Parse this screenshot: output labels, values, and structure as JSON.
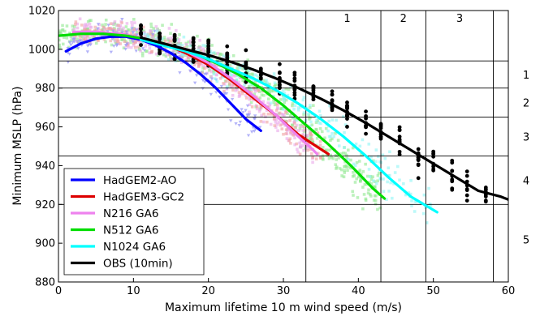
{
  "chart_data": {
    "type": "scatter",
    "xlabel": "Maximum lifetime 10 m wind speed (m/s)",
    "ylabel": "Minimum MSLP (hPa)",
    "xlim": [
      0,
      60
    ],
    "ylim": [
      880,
      1020
    ],
    "xticks": [
      "0",
      "10",
      "20",
      "30",
      "40",
      "50",
      "60"
    ],
    "yticks": [
      "880",
      "900",
      "920",
      "940",
      "960",
      "980",
      "1000",
      "1020"
    ],
    "legend_position": "lower-left",
    "category_lines": {
      "wind": [
        33,
        43,
        49,
        58
      ],
      "pressure": [
        994,
        980,
        965,
        945,
        920
      ],
      "top_labels": [
        {
          "text": "1",
          "x": 38.5
        },
        {
          "text": "2",
          "x": 46.0
        },
        {
          "text": "3",
          "x": 53.5
        }
      ],
      "right_labels": [
        {
          "text": "1",
          "y": 987
        },
        {
          "text": "2",
          "y": 972.5
        },
        {
          "text": "3",
          "y": 955
        },
        {
          "text": "4",
          "y": 932.5
        },
        {
          "text": "5",
          "y": 902
        }
      ]
    },
    "series": [
      {
        "name": "HadGEM2-AO",
        "color": "#0000ff",
        "x": [
          1,
          3,
          5,
          7,
          9,
          11,
          13,
          15,
          17,
          19,
          21,
          23,
          25,
          27
        ],
        "y": [
          999,
          1003,
          1005.5,
          1006.5,
          1006.5,
          1005,
          1002,
          998,
          993,
          987,
          980,
          972,
          964,
          958
        ]
      },
      {
        "name": "HadGEM3-GC2",
        "color": "#dd0000",
        "x": [
          2,
          5,
          8,
          11,
          14,
          17,
          20,
          23,
          26,
          29,
          32,
          34,
          36
        ],
        "y": [
          1008,
          1008.5,
          1008,
          1006,
          1003,
          998,
          992,
          984,
          975,
          966,
          956,
          951,
          946
        ]
      },
      {
        "name": "N216 GA6",
        "color": "#ee82ee",
        "x": [
          2,
          5,
          8,
          11,
          14,
          17,
          20,
          23,
          26,
          29,
          32,
          34,
          34.5
        ],
        "y": [
          1009,
          1009,
          1008,
          1006,
          1003,
          999,
          993,
          985,
          976,
          966,
          955,
          948,
          946
        ]
      },
      {
        "name": "N512 GA6",
        "color": "#00dd00",
        "x": [
          0,
          3,
          6,
          9,
          12,
          15,
          18,
          21,
          24,
          27,
          30,
          33,
          36,
          39,
          42,
          43.5
        ],
        "y": [
          1007,
          1008,
          1008,
          1007,
          1005,
          1002,
          998,
          993,
          987,
          980,
          971,
          961,
          951,
          940,
          928,
          923
        ]
      },
      {
        "name": "N1024 GA6",
        "color": "#00ffff",
        "x": [
          11,
          14,
          17,
          20,
          23,
          26,
          29,
          32,
          35,
          38,
          41,
          44,
          47,
          50.5
        ],
        "y": [
          1005,
          1002,
          999,
          995,
          990,
          985,
          979,
          972,
          964,
          955,
          945,
          934,
          924,
          916
        ]
      },
      {
        "name": "OBS (10min)",
        "color": "#000000",
        "x": [
          11,
          14,
          17,
          20,
          23,
          26,
          29,
          32,
          35,
          38,
          41,
          44,
          47,
          50,
          53,
          56,
          59,
          60
        ],
        "y": [
          1006,
          1003,
          1000,
          997,
          993.5,
          989.5,
          985,
          980,
          974.5,
          968.5,
          962,
          955,
          948,
          941,
          934,
          927,
          924,
          922.5
        ]
      }
    ]
  }
}
